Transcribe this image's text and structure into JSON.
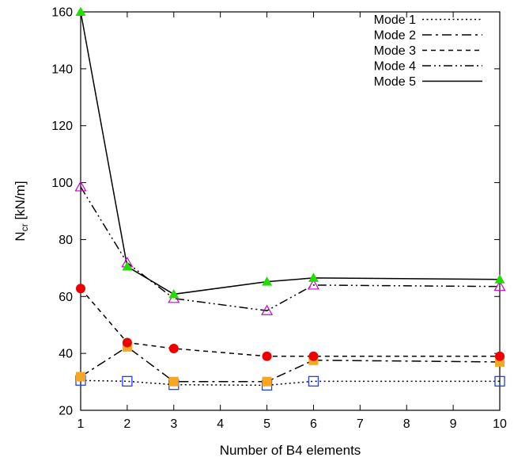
{
  "chart_data": {
    "type": "line",
    "title": "",
    "xlabel": "Number of B4 elements",
    "ylabel_main": "N",
    "ylabel_sub": "cr",
    "ylabel_unit": " [kN/m]",
    "x_ticks": [
      "1",
      "2",
      "3",
      "4",
      "5",
      "6",
      "7",
      "8",
      "9",
      "10"
    ],
    "y_ticks": [
      "20",
      "40",
      "60",
      "80",
      "100",
      "120",
      "140",
      "160"
    ],
    "xlim": [
      1,
      10
    ],
    "ylim": [
      20,
      160
    ],
    "grid": false,
    "legend_position": "top-right",
    "x": [
      1,
      2,
      3,
      5,
      6,
      10
    ],
    "series": [
      {
        "name": "Mode 1",
        "line_style": "dotted",
        "marker": "open-square",
        "marker_color": "#1f3fff",
        "values": [
          30.5,
          30.2,
          29.0,
          28.8,
          30.2,
          30.2
        ]
      },
      {
        "name": "Mode 2",
        "line_style": "dash-dot",
        "marker": "filled-square",
        "marker_color": "#f5a623",
        "values": [
          31.8,
          42.3,
          30.1,
          30.1,
          37.6,
          37.0
        ]
      },
      {
        "name": "Mode 3",
        "line_style": "dashed",
        "marker": "filled-circle",
        "marker_color": "#ee0000",
        "values": [
          62.8,
          43.8,
          41.7,
          39.0,
          39.0,
          39.0
        ]
      },
      {
        "name": "Mode 4",
        "line_style": "dash-dot-dot",
        "marker": "open-triangle",
        "marker_color": "#cc00cc",
        "values": [
          98.5,
          71.8,
          59.3,
          55.0,
          64.0,
          63.5
        ]
      },
      {
        "name": "Mode 5",
        "line_style": "solid",
        "marker": "filled-triangle",
        "marker_color": "#22dd00",
        "values": [
          160.0,
          70.5,
          60.8,
          65.2,
          66.5,
          66.0
        ]
      }
    ]
  }
}
